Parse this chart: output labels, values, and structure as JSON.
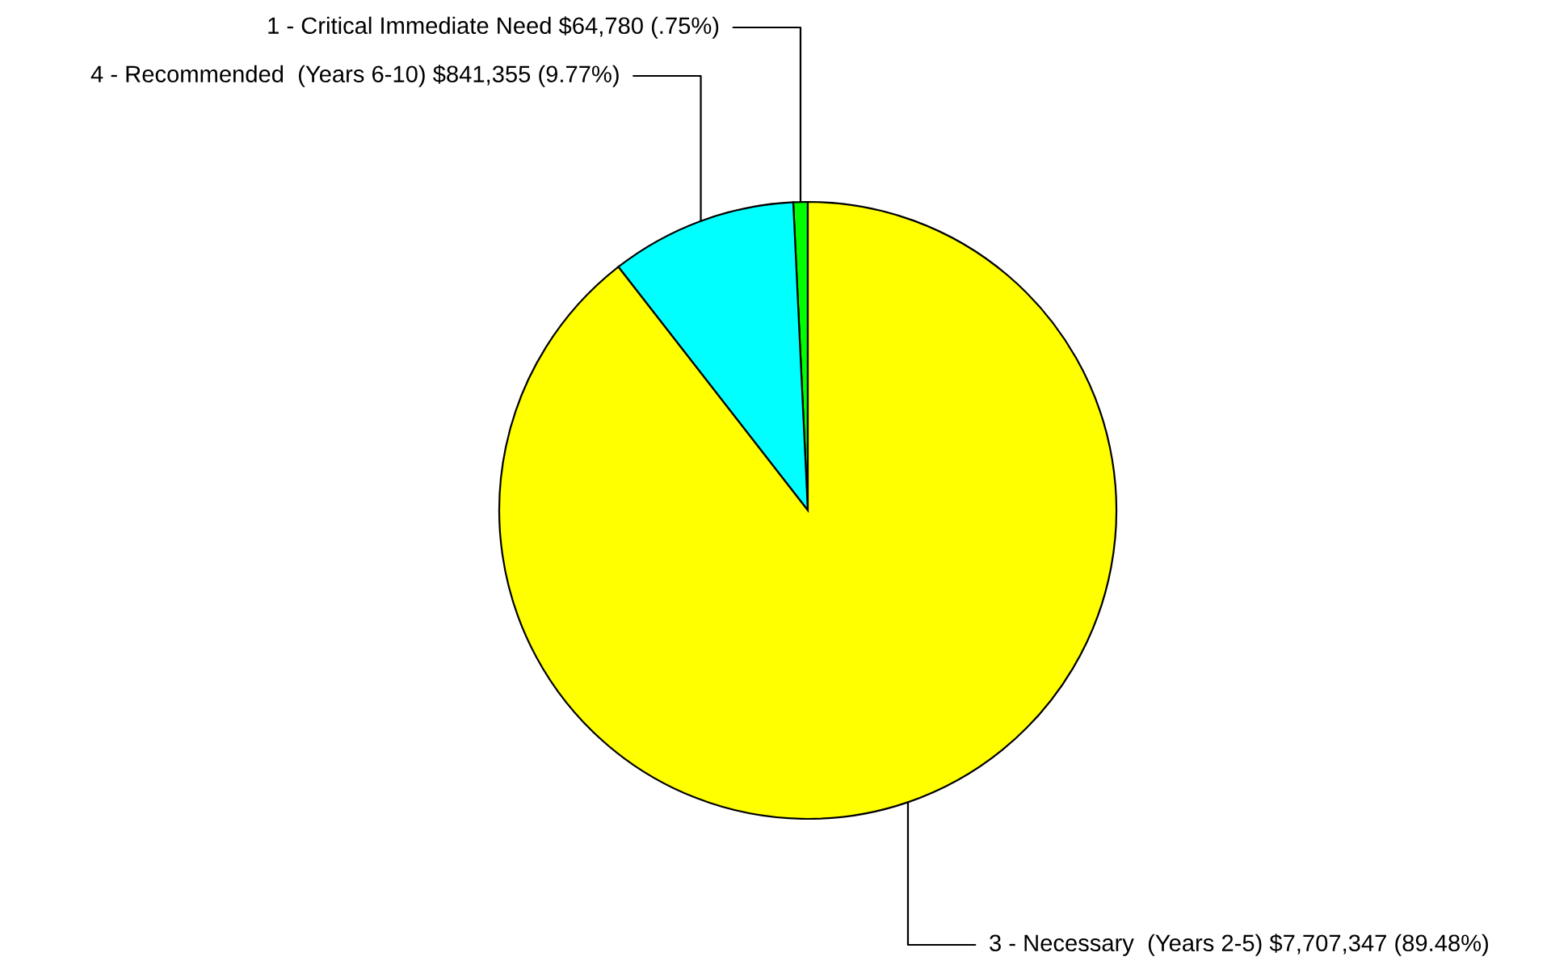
{
  "chart_data": {
    "type": "pie",
    "categories": [
      "1 - Critical Immediate Need",
      "4 - Recommended  (Years 6-10)",
      "3 - Necessary  (Years 2-5)"
    ],
    "values": [
      64780,
      841355,
      7707347
    ],
    "value_labels": [
      "$64,780 (.75%)",
      "$841,355 (9.77%)",
      "$7,707,347 (89.48%)"
    ],
    "colors": [
      "#00ff00",
      "#00ffff",
      "#ffff00"
    ]
  }
}
